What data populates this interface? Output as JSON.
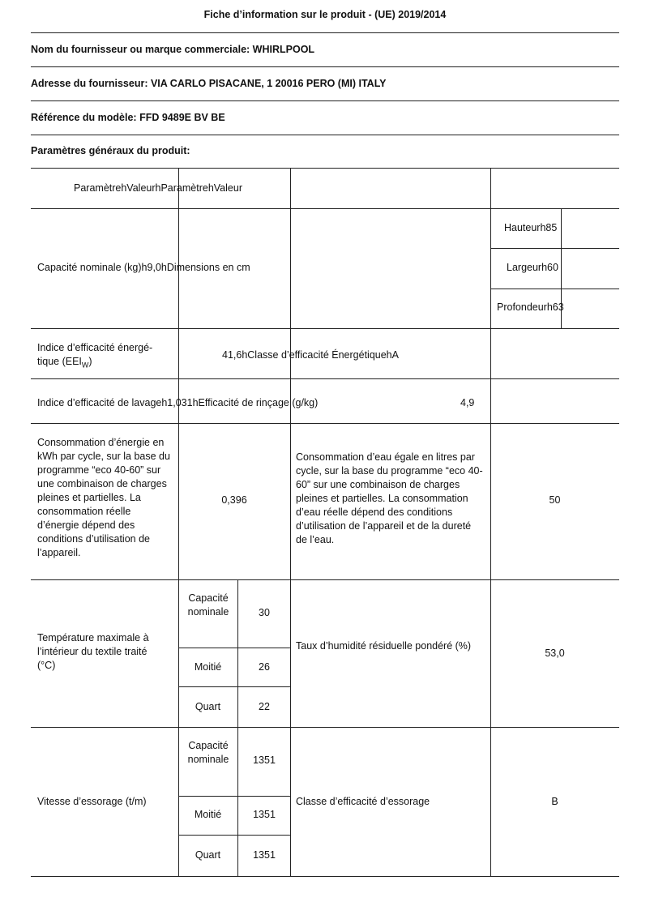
{
  "title": "Fiche d’information sur le produit - (UE) 2019/2014",
  "supplier": "Nom du fournisseur ou marque commerciale: WHIRLPOOL",
  "address": "Adresse du fournisseur: VIA CARLO PISACANE, 1 20016 PERO (MI) ITALY",
  "model": "Référence du modèle: FFD 9489E BV BE",
  "general": "Paramètres généraux du produit:",
  "table": {
    "header": "ParamètrehValeurhParamètrehValeur",
    "capacity": "Capacité nominale (kg)h9,0hDimensions en cm",
    "height": "Hauteurh85",
    "width": "Largeurh60",
    "depth": "Profondeurh63",
    "eei_label": "Indice d’efficacité énergé-tique (EEI",
    "eei_sub": "W",
    "eei_close": ")",
    "eei_value": "41,6hClasse d’efficacité ÉnergétiquehA",
    "wash_label": "Indice d’efficacité de lavageh1,031hEfficacité de rinçage (g/kg)",
    "rinse_value": "4,9",
    "energy_label": "Consommation d’énergie en kWh par cycle, sur la base du programme “eco 40-60” sur une combinaison de charges pleines et partielles. La consommation réelle d’énergie dépend des conditions d’utilisation de l’appareil.",
    "energy_value": "0,396",
    "water_label": "Consommation d’eau égale en litres par cycle, sur la base du programme “eco 40-60” sur une combinaison de charges pleines et partielles. La consommation d’eau réelle dépend des conditions d’utilisation de l’appareil et de la dureté de l’eau.",
    "water_value": "50",
    "temp_label": "Température maximale à l’intérieur du textile traité (°C)",
    "temp_rows": [
      {
        "label": "Capacité nominale",
        "value": "30"
      },
      {
        "label": "Moitié",
        "value": "26"
      },
      {
        "label": "Quart",
        "value": "22"
      }
    ],
    "humidity_label": "Taux d’humidité résiduelle pondéré (%)",
    "humidity_value": "53,0",
    "spin_label": "Vitesse d’essorage (t/m)",
    "spin_rows": [
      {
        "label": "Capacité nominale",
        "value": "1351"
      },
      {
        "label": "Moitié",
        "value": "1351"
      },
      {
        "label": "Quart",
        "value": "1351"
      }
    ],
    "spin_class_label": "Classe d’efficacité d’essorage",
    "spin_class_value": "B"
  }
}
